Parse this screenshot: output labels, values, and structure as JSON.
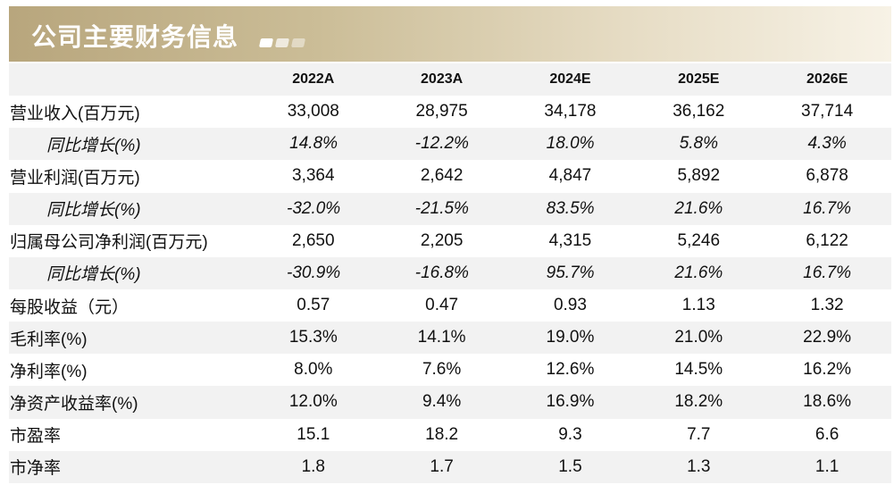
{
  "banner": {
    "title": "公司主要财务信息"
  },
  "table": {
    "columns": [
      "2022A",
      "2023A",
      "2024E",
      "2025E",
      "2026E"
    ],
    "rows": [
      {
        "label": "营业收入(百万元)",
        "values": [
          "33,008",
          "28,975",
          "34,178",
          "36,162",
          "37,714"
        ]
      },
      {
        "label": "同比增长(%)",
        "values": [
          "14.8%",
          "-12.2%",
          "18.0%",
          "5.8%",
          "4.3%"
        ]
      },
      {
        "label": "营业利润(百万元)",
        "values": [
          "3,364",
          "2,642",
          "4,847",
          "5,892",
          "6,878"
        ]
      },
      {
        "label": "同比增长(%)",
        "values": [
          "-32.0%",
          "-21.5%",
          "83.5%",
          "21.6%",
          "16.7%"
        ]
      },
      {
        "label": "归属母公司净利润(百万元)",
        "values": [
          "2,650",
          "2,205",
          "4,315",
          "5,246",
          "6,122"
        ]
      },
      {
        "label": "同比增长(%)",
        "values": [
          "-30.9%",
          "-16.8%",
          "95.7%",
          "21.6%",
          "16.7%"
        ]
      },
      {
        "label": "每股收益（元）",
        "values": [
          "0.57",
          "0.47",
          "0.93",
          "1.13",
          "1.32"
        ]
      },
      {
        "label": "毛利率(%)",
        "values": [
          "15.3%",
          "14.1%",
          "19.0%",
          "21.0%",
          "22.9%"
        ]
      },
      {
        "label": "净利率(%)",
        "values": [
          "8.0%",
          "7.6%",
          "12.6%",
          "14.5%",
          "16.2%"
        ]
      },
      {
        "label": "净资产收益率(%)",
        "values": [
          "12.0%",
          "9.4%",
          "16.9%",
          "18.2%",
          "18.6%"
        ]
      },
      {
        "label": "市盈率",
        "values": [
          "15.1",
          "18.2",
          "9.3",
          "7.7",
          "6.6"
        ]
      },
      {
        "label": "市净率",
        "values": [
          "1.8",
          "1.7",
          "1.5",
          "1.3",
          "1.1"
        ]
      }
    ]
  }
}
